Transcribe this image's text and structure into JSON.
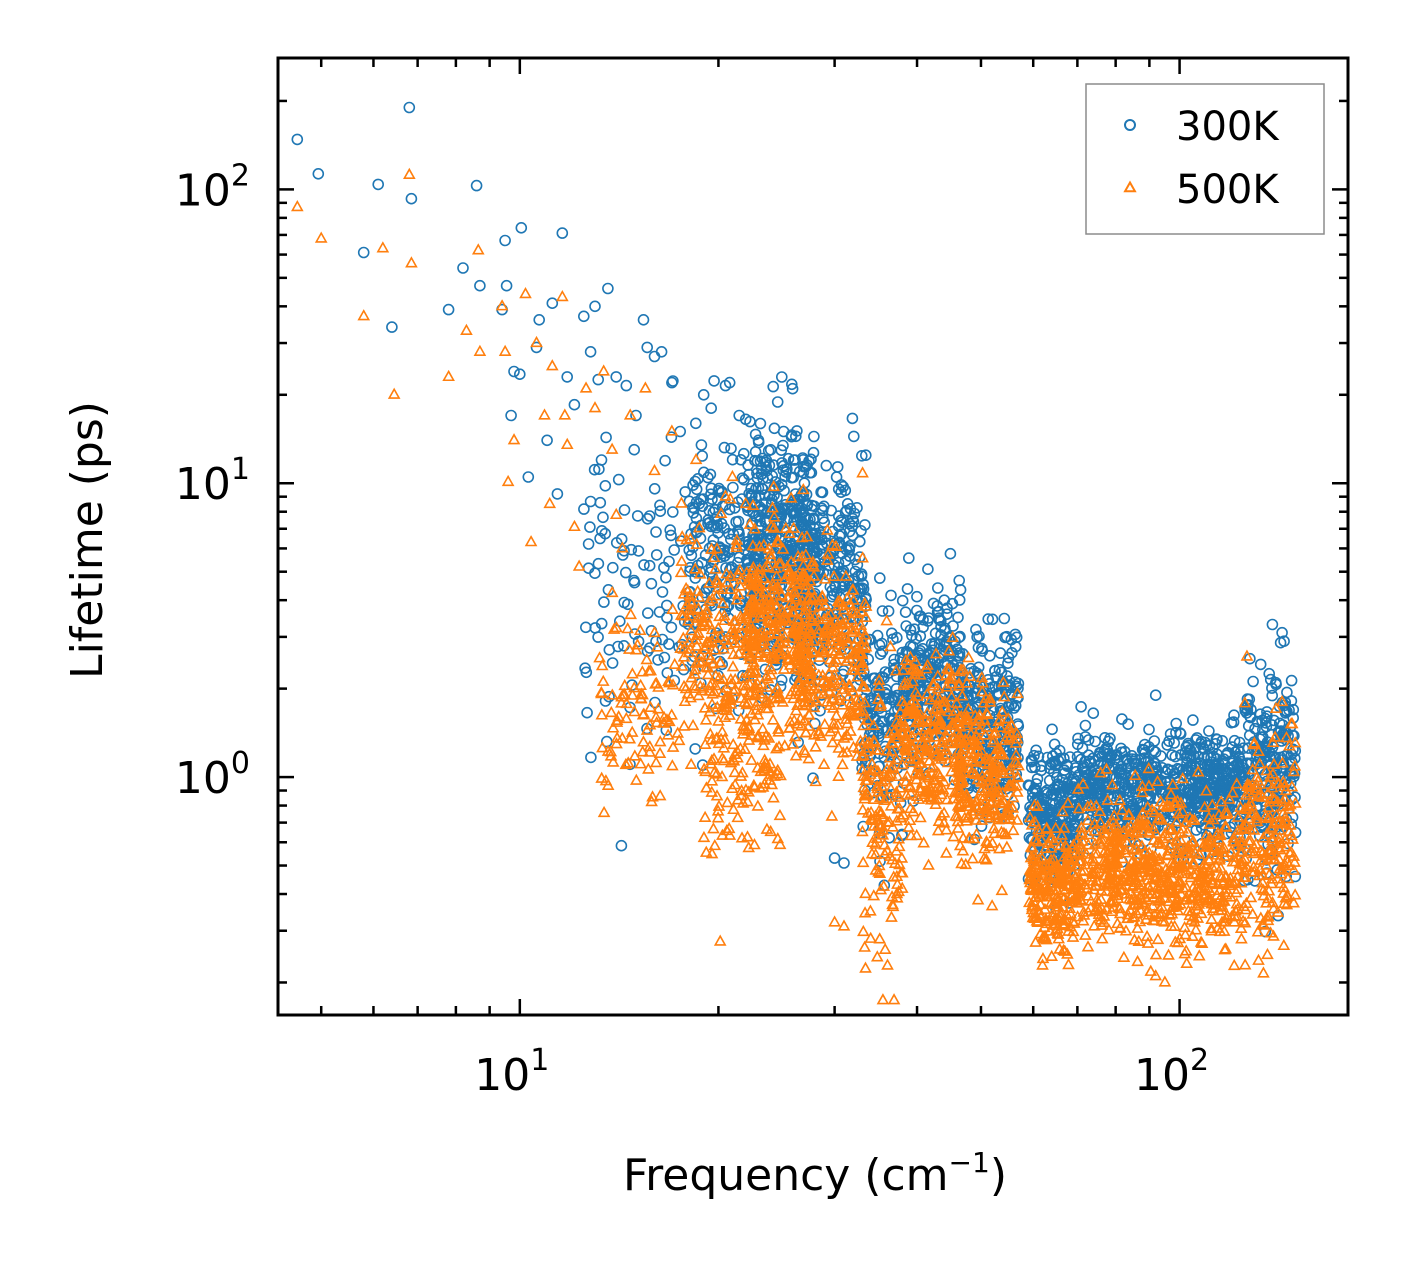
{
  "chart_data": {
    "type": "scatter",
    "title": "",
    "xlabel": "Frequency (cm",
    "xlabel_sup": "−1",
    "xlabel_end": ")",
    "ylabel": "Lifetime (ps)",
    "xscale": "log",
    "yscale": "log",
    "xlim": [
      4.3,
      180
    ],
    "ylim": [
      0.155,
      280
    ],
    "x_tick_labels": [
      {
        "value": 10,
        "base": "10",
        "exp": "1"
      },
      {
        "value": 100,
        "base": "10",
        "exp": "2"
      }
    ],
    "y_tick_labels": [
      {
        "value": 1,
        "base": "10",
        "exp": "0"
      },
      {
        "value": 10,
        "base": "10",
        "exp": "1"
      },
      {
        "value": 100,
        "base": "10",
        "exp": "2"
      }
    ],
    "legend_position": "top-right",
    "series": [
      {
        "name": "300K",
        "marker": "circle",
        "color": "#1f77b4",
        "clusters": [
          {
            "xmin": 12.5,
            "xmax": 19,
            "n": 120,
            "yc": 4.5,
            "ys": 0.55
          },
          {
            "xmin": 18,
            "xmax": 25,
            "n": 260,
            "yc": 5.5,
            "ys": 0.45
          },
          {
            "xmin": 22,
            "xmax": 28,
            "n": 300,
            "yc": 6.5,
            "ys": 0.4
          },
          {
            "xmin": 26,
            "xmax": 33.5,
            "n": 320,
            "yc": 4.5,
            "ys": 0.4
          },
          {
            "xmin": 33,
            "xmax": 38,
            "n": 150,
            "yc": 1.6,
            "ys": 0.35
          },
          {
            "xmin": 38,
            "xmax": 47,
            "n": 260,
            "yc": 2.1,
            "ys": 0.3
          },
          {
            "xmin": 46,
            "xmax": 57,
            "n": 260,
            "yc": 1.6,
            "ys": 0.3
          },
          {
            "xmin": 59,
            "xmax": 70,
            "n": 250,
            "yc": 0.75,
            "ys": 0.22
          },
          {
            "xmin": 70,
            "xmax": 125,
            "n": 700,
            "yc": 0.92,
            "ys": 0.18
          },
          {
            "xmin": 125,
            "xmax": 150,
            "n": 220,
            "yc": 1.1,
            "ys": 0.35
          }
        ],
        "points": [
          [
            4.6,
            148
          ],
          [
            4.95,
            113
          ],
          [
            5.8,
            61
          ],
          [
            6.1,
            104
          ],
          [
            6.4,
            34
          ],
          [
            6.8,
            190
          ],
          [
            6.85,
            93
          ],
          [
            7.8,
            39
          ],
          [
            8.2,
            54
          ],
          [
            8.6,
            103
          ],
          [
            8.7,
            47
          ],
          [
            9.4,
            39
          ],
          [
            9.5,
            67
          ],
          [
            9.55,
            47
          ],
          [
            9.7,
            17
          ],
          [
            9.8,
            24
          ],
          [
            10.0,
            23.5
          ],
          [
            10.05,
            74
          ],
          [
            10.3,
            10.5
          ],
          [
            10.6,
            29
          ],
          [
            10.7,
            36
          ],
          [
            11.0,
            14
          ],
          [
            11.2,
            41
          ],
          [
            11.4,
            9.2
          ],
          [
            11.6,
            71
          ],
          [
            11.8,
            23
          ],
          [
            12.1,
            18.5
          ],
          [
            12.5,
            37
          ],
          [
            12.8,
            28
          ],
          [
            13.0,
            40
          ],
          [
            13.3,
            12
          ],
          [
            13.6,
            46
          ],
          [
            14.0,
            23
          ],
          [
            14.5,
            21.5
          ],
          [
            15.0,
            17
          ],
          [
            15.4,
            36
          ],
          [
            15.6,
            29
          ],
          [
            16.0,
            27
          ],
          [
            16.4,
            28
          ],
          [
            17.0,
            22
          ],
          [
            17.5,
            15
          ],
          [
            19.0,
            20
          ],
          [
            19.5,
            18
          ],
          [
            20.5,
            21.5
          ],
          [
            20.8,
            22
          ],
          [
            21.5,
            17
          ],
          [
            22.0,
            16.5
          ],
          [
            23.0,
            14
          ],
          [
            24.0,
            13
          ],
          [
            26.0,
            12
          ],
          [
            27.0,
            10
          ],
          [
            30.0,
            0.53
          ],
          [
            31.0,
            0.51
          ],
          [
            43.0,
            4.4
          ],
          [
            44.0,
            4.0
          ],
          [
            74.0,
            1.65
          ],
          [
            92.0,
            1.9
          ],
          [
            103.0,
            1.3
          ],
          [
            143.0,
            3.1
          ],
          [
            144.0,
            2.9
          ],
          [
            28.0,
            1.52
          ]
        ]
      },
      {
        "name": "500K",
        "marker": "triangle",
        "color": "#ff7f0e",
        "clusters": [
          {
            "xmin": 13.2,
            "xmax": 17.5,
            "n": 100,
            "yc": 1.65,
            "ys": 0.3
          },
          {
            "xmin": 17.5,
            "xmax": 23,
            "n": 230,
            "yc": 2.8,
            "ys": 0.35
          },
          {
            "xmin": 19,
            "xmax": 25,
            "n": 120,
            "yc": 1.05,
            "ys": 0.3
          },
          {
            "xmin": 22,
            "xmax": 28,
            "n": 280,
            "yc": 3.4,
            "ys": 0.35
          },
          {
            "xmin": 26,
            "xmax": 33.5,
            "n": 280,
            "yc": 2.4,
            "ys": 0.35
          },
          {
            "xmin": 33,
            "xmax": 38,
            "n": 160,
            "yc": 0.75,
            "ys": 0.45
          },
          {
            "xmin": 38,
            "xmax": 47,
            "n": 260,
            "yc": 1.3,
            "ys": 0.3
          },
          {
            "xmin": 46,
            "xmax": 57,
            "n": 260,
            "yc": 1.0,
            "ys": 0.3
          },
          {
            "xmin": 59,
            "xmax": 70,
            "n": 240,
            "yc": 0.42,
            "ys": 0.22
          },
          {
            "xmin": 70,
            "xmax": 125,
            "n": 700,
            "yc": 0.48,
            "ys": 0.25
          },
          {
            "xmin": 125,
            "xmax": 150,
            "n": 200,
            "yc": 0.6,
            "ys": 0.35
          }
        ],
        "points": [
          [
            4.6,
            87
          ],
          [
            5.0,
            68
          ],
          [
            5.8,
            37
          ],
          [
            6.2,
            63
          ],
          [
            6.45,
            20
          ],
          [
            6.8,
            112
          ],
          [
            6.85,
            56
          ],
          [
            7.8,
            23
          ],
          [
            8.3,
            33
          ],
          [
            8.65,
            62
          ],
          [
            8.7,
            28
          ],
          [
            9.4,
            40
          ],
          [
            9.5,
            28
          ],
          [
            9.6,
            10.1
          ],
          [
            9.8,
            14
          ],
          [
            10.2,
            44
          ],
          [
            10.4,
            6.3
          ],
          [
            10.6,
            30
          ],
          [
            10.9,
            17
          ],
          [
            11.1,
            8.5
          ],
          [
            11.2,
            25
          ],
          [
            11.6,
            43
          ],
          [
            11.7,
            17
          ],
          [
            11.8,
            13.5
          ],
          [
            12.1,
            7.1
          ],
          [
            12.3,
            5.2
          ],
          [
            12.6,
            21
          ],
          [
            13.0,
            18
          ],
          [
            13.4,
            24
          ],
          [
            13.8,
            13
          ],
          [
            14.0,
            7.8
          ],
          [
            14.3,
            6.0
          ],
          [
            14.7,
            17
          ],
          [
            15.5,
            21
          ],
          [
            16.0,
            11
          ],
          [
            17.0,
            15
          ],
          [
            18.5,
            12
          ],
          [
            20.5,
            9.0
          ],
          [
            21.0,
            10.5
          ],
          [
            22.0,
            8.5
          ],
          [
            26.0,
            7.0
          ],
          [
            30.0,
            0.32
          ],
          [
            31.0,
            0.31
          ],
          [
            43.0,
            2.2
          ],
          [
            38.0,
            0.47
          ],
          [
            92.0,
            0.21
          ],
          [
            95.0,
            0.2
          ],
          [
            143.0,
            1.8
          ],
          [
            24.0,
            0.65
          ]
        ]
      }
    ]
  }
}
